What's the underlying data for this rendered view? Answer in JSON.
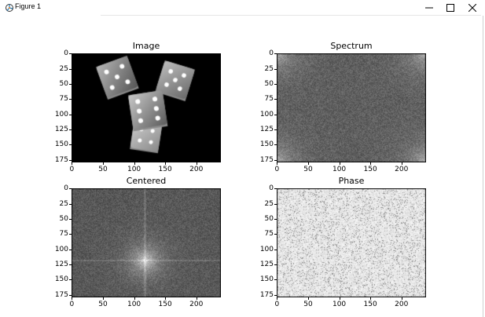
{
  "window": {
    "title": "Figure 1",
    "controls": {
      "minimize": "minimize-icon",
      "maximize": "maximize-icon",
      "close": "close-icon"
    }
  },
  "figure": {
    "subplots": [
      {
        "title": "Image",
        "content": "grayscale photo of three dice on black background"
      },
      {
        "title": "Spectrum"
      },
      {
        "title": "Centered"
      },
      {
        "title": "Phase"
      }
    ],
    "yticks": [
      "0",
      "25",
      "50",
      "75",
      "100",
      "125",
      "150",
      "175"
    ],
    "xticks": [
      "0",
      "50",
      "100",
      "150",
      "200"
    ],
    "colors": {
      "axis_frame": "#000000",
      "image_bg": "#000000",
      "noise_mid": "#6e6e6e",
      "phase_bg": "#e8e8e8"
    }
  }
}
